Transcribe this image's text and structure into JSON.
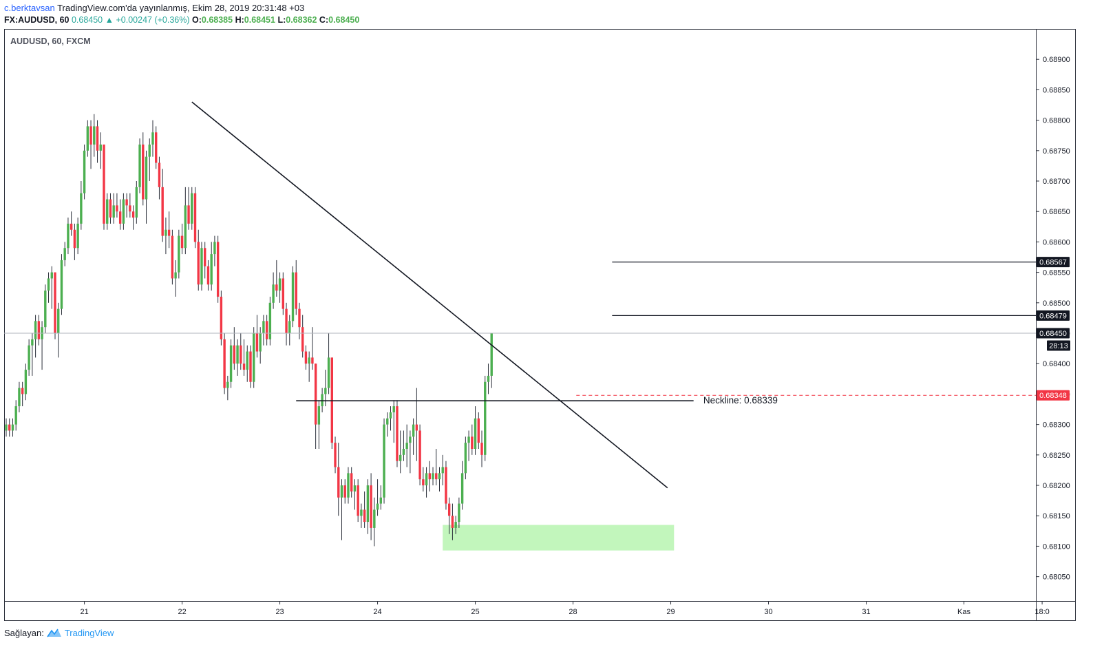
{
  "header": {
    "user": "c.berktavsan",
    "published": "TradingView.com'da yayınlanmış, Ekim 28, 2019 20:31:48 +03",
    "symbol": "FX:AUDUSD, 60",
    "last": "0.68450",
    "change": "+0.00247 (+0.36%)",
    "o_label": "O:",
    "o": "0.68385",
    "h_label": "H:",
    "h": "0.68451",
    "l_label": "L:",
    "l": "0.68362",
    "c_label": "C:",
    "c": "0.68450"
  },
  "footer": {
    "provider_label": "Sağlayan:",
    "brand": "TradingView"
  },
  "colors": {
    "up": "#4caf50",
    "down": "#f23645",
    "zone": "#b7f5b0",
    "alert": "#f23645"
  },
  "chart_data": {
    "type": "candlestick",
    "title": "AUDUSD, 60, FXCM",
    "ylim": [
      0.6801,
      0.6895
    ],
    "yticks": [
      "0.68050",
      "0.68100",
      "0.68150",
      "0.68200",
      "0.68250",
      "0.68300",
      "0.68350",
      "0.68400",
      "0.68450",
      "0.68500",
      "0.68550",
      "0.68600",
      "0.68650",
      "0.68700",
      "0.68750",
      "0.68800",
      "0.68850",
      "0.68900"
    ],
    "xticks": [
      {
        "label": "21",
        "bar": 24
      },
      {
        "label": "22",
        "bar": 54
      },
      {
        "label": "23",
        "bar": 84
      },
      {
        "label": "24",
        "bar": 114
      },
      {
        "label": "25",
        "bar": 144
      },
      {
        "label": "28",
        "bar": 174
      },
      {
        "label": "29",
        "bar": 204
      },
      {
        "label": "30",
        "bar": 234
      },
      {
        "label": "31",
        "bar": 264
      },
      {
        "label": "Kas",
        "bar": 294
      },
      {
        "label": "18:0",
        "bar": 318
      }
    ],
    "price_labels": [
      {
        "value": "0.68567",
        "style": "black"
      },
      {
        "value": "0.68479",
        "style": "black"
      },
      {
        "value": "0.68450",
        "style": "black"
      },
      {
        "value": "28:13",
        "style": "black"
      },
      {
        "value": "0.68348",
        "style": "red"
      }
    ],
    "annotations": {
      "neckline_text": "Neckline: 0.68339"
    },
    "candles": [
      [
        0.6829,
        0.6831,
        0.6828,
        0.683
      ],
      [
        0.683,
        0.6831,
        0.6828,
        0.6829
      ],
      [
        0.6829,
        0.6831,
        0.6828,
        0.683
      ],
      [
        0.683,
        0.6834,
        0.6829,
        0.6833
      ],
      [
        0.6833,
        0.6837,
        0.6832,
        0.6836
      ],
      [
        0.6836,
        0.6837,
        0.6833,
        0.6835
      ],
      [
        0.6835,
        0.684,
        0.6834,
        0.6839
      ],
      [
        0.6839,
        0.6844,
        0.6838,
        0.6843
      ],
      [
        0.6843,
        0.6845,
        0.6838,
        0.6844
      ],
      [
        0.6844,
        0.6848,
        0.6841,
        0.6847
      ],
      [
        0.6847,
        0.6848,
        0.6843,
        0.6844
      ],
      [
        0.6844,
        0.6847,
        0.6839,
        0.6846
      ],
      [
        0.6846,
        0.6853,
        0.6845,
        0.6852
      ],
      [
        0.6852,
        0.6855,
        0.685,
        0.6854
      ],
      [
        0.6854,
        0.6856,
        0.6849,
        0.6855
      ],
      [
        0.6855,
        0.6855,
        0.6844,
        0.6845
      ],
      [
        0.6845,
        0.685,
        0.6841,
        0.6849
      ],
      [
        0.6849,
        0.6858,
        0.6848,
        0.6857
      ],
      [
        0.6857,
        0.686,
        0.6856,
        0.6859
      ],
      [
        0.6859,
        0.6864,
        0.6858,
        0.6863
      ],
      [
        0.6863,
        0.6865,
        0.6861,
        0.6862
      ],
      [
        0.6862,
        0.6863,
        0.6857,
        0.6859
      ],
      [
        0.6859,
        0.6864,
        0.6858,
        0.6863
      ],
      [
        0.6863,
        0.687,
        0.6862,
        0.6868
      ],
      [
        0.6868,
        0.6876,
        0.6867,
        0.6875
      ],
      [
        0.6875,
        0.688,
        0.6874,
        0.6879
      ],
      [
        0.6879,
        0.688,
        0.6872,
        0.6876
      ],
      [
        0.6876,
        0.6881,
        0.6874,
        0.6879
      ],
      [
        0.6879,
        0.688,
        0.6873,
        0.6875
      ],
      [
        0.6875,
        0.6878,
        0.6872,
        0.6876
      ],
      [
        0.6876,
        0.6876,
        0.6862,
        0.6863
      ],
      [
        0.6863,
        0.6868,
        0.6862,
        0.6867
      ],
      [
        0.6867,
        0.6868,
        0.6863,
        0.6864
      ],
      [
        0.6864,
        0.6868,
        0.6863,
        0.6866
      ],
      [
        0.6866,
        0.6868,
        0.6864,
        0.6865
      ],
      [
        0.6865,
        0.6867,
        0.6862,
        0.6863
      ],
      [
        0.6863,
        0.6868,
        0.6862,
        0.6867
      ],
      [
        0.6867,
        0.6868,
        0.6864,
        0.6866
      ],
      [
        0.6866,
        0.6868,
        0.6864,
        0.6865
      ],
      [
        0.6865,
        0.6866,
        0.6862,
        0.6864
      ],
      [
        0.6864,
        0.687,
        0.6863,
        0.6869
      ],
      [
        0.6869,
        0.6877,
        0.6868,
        0.6876
      ],
      [
        0.6876,
        0.6878,
        0.6866,
        0.6867
      ],
      [
        0.6867,
        0.6875,
        0.6863,
        0.6874
      ],
      [
        0.6874,
        0.6877,
        0.687,
        0.6876
      ],
      [
        0.6876,
        0.688,
        0.6874,
        0.6878
      ],
      [
        0.6878,
        0.6879,
        0.6872,
        0.6873
      ],
      [
        0.6873,
        0.6874,
        0.6867,
        0.6869
      ],
      [
        0.6869,
        0.6872,
        0.686,
        0.6861
      ],
      [
        0.6861,
        0.6864,
        0.6858,
        0.6862
      ],
      [
        0.6862,
        0.6865,
        0.6859,
        0.6861
      ],
      [
        0.6861,
        0.6862,
        0.6853,
        0.6854
      ],
      [
        0.6854,
        0.6857,
        0.6851,
        0.6855
      ],
      [
        0.6855,
        0.6862,
        0.6854,
        0.6861
      ],
      [
        0.6861,
        0.6863,
        0.6858,
        0.6859
      ],
      [
        0.6859,
        0.6869,
        0.6858,
        0.6866
      ],
      [
        0.6866,
        0.6869,
        0.6862,
        0.6863
      ],
      [
        0.6863,
        0.6869,
        0.6862,
        0.6868
      ],
      [
        0.6868,
        0.6869,
        0.6859,
        0.686
      ],
      [
        0.686,
        0.6862,
        0.6852,
        0.6853
      ],
      [
        0.6853,
        0.686,
        0.6852,
        0.6859
      ],
      [
        0.6859,
        0.686,
        0.6854,
        0.6856
      ],
      [
        0.6856,
        0.6857,
        0.6852,
        0.6853
      ],
      [
        0.6853,
        0.686,
        0.6852,
        0.6858
      ],
      [
        0.6858,
        0.6861,
        0.6856,
        0.686
      ],
      [
        0.686,
        0.6861,
        0.685,
        0.6851
      ],
      [
        0.6851,
        0.6852,
        0.6843,
        0.6844
      ],
      [
        0.6844,
        0.6845,
        0.6835,
        0.6836
      ],
      [
        0.6836,
        0.6838,
        0.6834,
        0.6837
      ],
      [
        0.6837,
        0.6844,
        0.6836,
        0.6843
      ],
      [
        0.6843,
        0.6846,
        0.6839,
        0.684
      ],
      [
        0.684,
        0.6844,
        0.6838,
        0.6843
      ],
      [
        0.6843,
        0.6845,
        0.6839,
        0.684
      ],
      [
        0.684,
        0.6844,
        0.6838,
        0.6839
      ],
      [
        0.6839,
        0.6843,
        0.6837,
        0.6842
      ],
      [
        0.6842,
        0.6843,
        0.6836,
        0.6837
      ],
      [
        0.6837,
        0.6846,
        0.6836,
        0.6845
      ],
      [
        0.6845,
        0.6848,
        0.6841,
        0.6842
      ],
      [
        0.6842,
        0.6846,
        0.684,
        0.6845
      ],
      [
        0.6845,
        0.6848,
        0.6843,
        0.6847
      ],
      [
        0.6847,
        0.6848,
        0.6843,
        0.6844
      ],
      [
        0.6844,
        0.6851,
        0.6843,
        0.685
      ],
      [
        0.685,
        0.6855,
        0.6849,
        0.6853
      ],
      [
        0.6853,
        0.6857,
        0.6851,
        0.6852
      ],
      [
        0.6852,
        0.6855,
        0.685,
        0.6854
      ],
      [
        0.6854,
        0.6855,
        0.6848,
        0.6849
      ],
      [
        0.6849,
        0.685,
        0.6843,
        0.6845
      ],
      [
        0.6845,
        0.6848,
        0.6843,
        0.6847
      ],
      [
        0.6847,
        0.6856,
        0.6846,
        0.6855
      ],
      [
        0.6855,
        0.6857,
        0.6848,
        0.6849
      ],
      [
        0.6849,
        0.685,
        0.6844,
        0.6846
      ],
      [
        0.6846,
        0.6848,
        0.6841,
        0.6842
      ],
      [
        0.6842,
        0.6843,
        0.6839,
        0.684
      ],
      [
        0.684,
        0.6842,
        0.6837,
        0.6841
      ],
      [
        0.6841,
        0.6846,
        0.6839,
        0.684
      ],
      [
        0.684,
        0.684,
        0.6826,
        0.683
      ],
      [
        0.683,
        0.6834,
        0.6826,
        0.6833
      ],
      [
        0.6833,
        0.6836,
        0.6832,
        0.6835
      ],
      [
        0.6835,
        0.6839,
        0.6833,
        0.6836
      ],
      [
        0.6836,
        0.6845,
        0.6835,
        0.6841
      ],
      [
        0.6841,
        0.6841,
        0.6826,
        0.6827
      ],
      [
        0.6827,
        0.6828,
        0.6822,
        0.6823
      ],
      [
        0.6823,
        0.6827,
        0.6815,
        0.6818
      ],
      [
        0.6818,
        0.6821,
        0.6811,
        0.682
      ],
      [
        0.682,
        0.6821,
        0.6817,
        0.6818
      ],
      [
        0.6818,
        0.6823,
        0.6817,
        0.6822
      ],
      [
        0.6822,
        0.6823,
        0.6818,
        0.6819
      ],
      [
        0.6819,
        0.6821,
        0.6816,
        0.682
      ],
      [
        0.682,
        0.6821,
        0.6814,
        0.6815
      ],
      [
        0.6815,
        0.6817,
        0.6813,
        0.6816
      ],
      [
        0.6816,
        0.6819,
        0.6813,
        0.6814
      ],
      [
        0.6814,
        0.6821,
        0.6812,
        0.682
      ],
      [
        0.682,
        0.6822,
        0.6811,
        0.6813
      ],
      [
        0.6813,
        0.6818,
        0.681,
        0.6816
      ],
      [
        0.6816,
        0.6821,
        0.6815,
        0.6817
      ],
      [
        0.6817,
        0.682,
        0.6816,
        0.6818
      ],
      [
        0.6818,
        0.6831,
        0.6817,
        0.683
      ],
      [
        0.683,
        0.6832,
        0.6828,
        0.6831
      ],
      [
        0.6831,
        0.6833,
        0.6829,
        0.6832
      ],
      [
        0.6832,
        0.6834,
        0.6827,
        0.6833
      ],
      [
        0.6833,
        0.6834,
        0.6823,
        0.6824
      ],
      [
        0.6824,
        0.6829,
        0.6822,
        0.6825
      ],
      [
        0.6825,
        0.6829,
        0.6824,
        0.6826
      ],
      [
        0.6826,
        0.683,
        0.6823,
        0.6827
      ],
      [
        0.6827,
        0.6829,
        0.6822,
        0.6828
      ],
      [
        0.6828,
        0.6831,
        0.6825,
        0.683
      ],
      [
        0.683,
        0.6836,
        0.6824,
        0.6829
      ],
      [
        0.6829,
        0.683,
        0.682,
        0.6821
      ],
      [
        0.6821,
        0.6823,
        0.6819,
        0.682
      ],
      [
        0.682,
        0.6823,
        0.6818,
        0.6822
      ],
      [
        0.6822,
        0.6824,
        0.6819,
        0.6821
      ],
      [
        0.6821,
        0.6823,
        0.682,
        0.6822
      ],
      [
        0.6822,
        0.6826,
        0.682,
        0.6821
      ],
      [
        0.6821,
        0.6823,
        0.6819,
        0.6822
      ],
      [
        0.6822,
        0.6825,
        0.682,
        0.6823
      ],
      [
        0.6823,
        0.6824,
        0.6816,
        0.6817
      ],
      [
        0.6817,
        0.6818,
        0.6812,
        0.6815
      ],
      [
        0.6815,
        0.6817,
        0.6811,
        0.6813
      ],
      [
        0.6813,
        0.6815,
        0.6812,
        0.6814
      ],
      [
        0.6814,
        0.6818,
        0.6813,
        0.6817
      ],
      [
        0.6817,
        0.6824,
        0.6816,
        0.6822
      ],
      [
        0.6822,
        0.6828,
        0.6821,
        0.6827
      ],
      [
        0.6827,
        0.6829,
        0.6824,
        0.6828
      ],
      [
        0.6828,
        0.683,
        0.6825,
        0.6826
      ],
      [
        0.6826,
        0.6833,
        0.6825,
        0.6831
      ],
      [
        0.6831,
        0.6832,
        0.6826,
        0.6827
      ],
      [
        0.6827,
        0.6829,
        0.6823,
        0.6825
      ],
      [
        0.6825,
        0.6838,
        0.6824,
        0.6837
      ],
      [
        0.6837,
        0.684,
        0.6835,
        0.6838
      ],
      [
        0.6838,
        0.6845,
        0.6836,
        0.6845
      ]
    ]
  }
}
